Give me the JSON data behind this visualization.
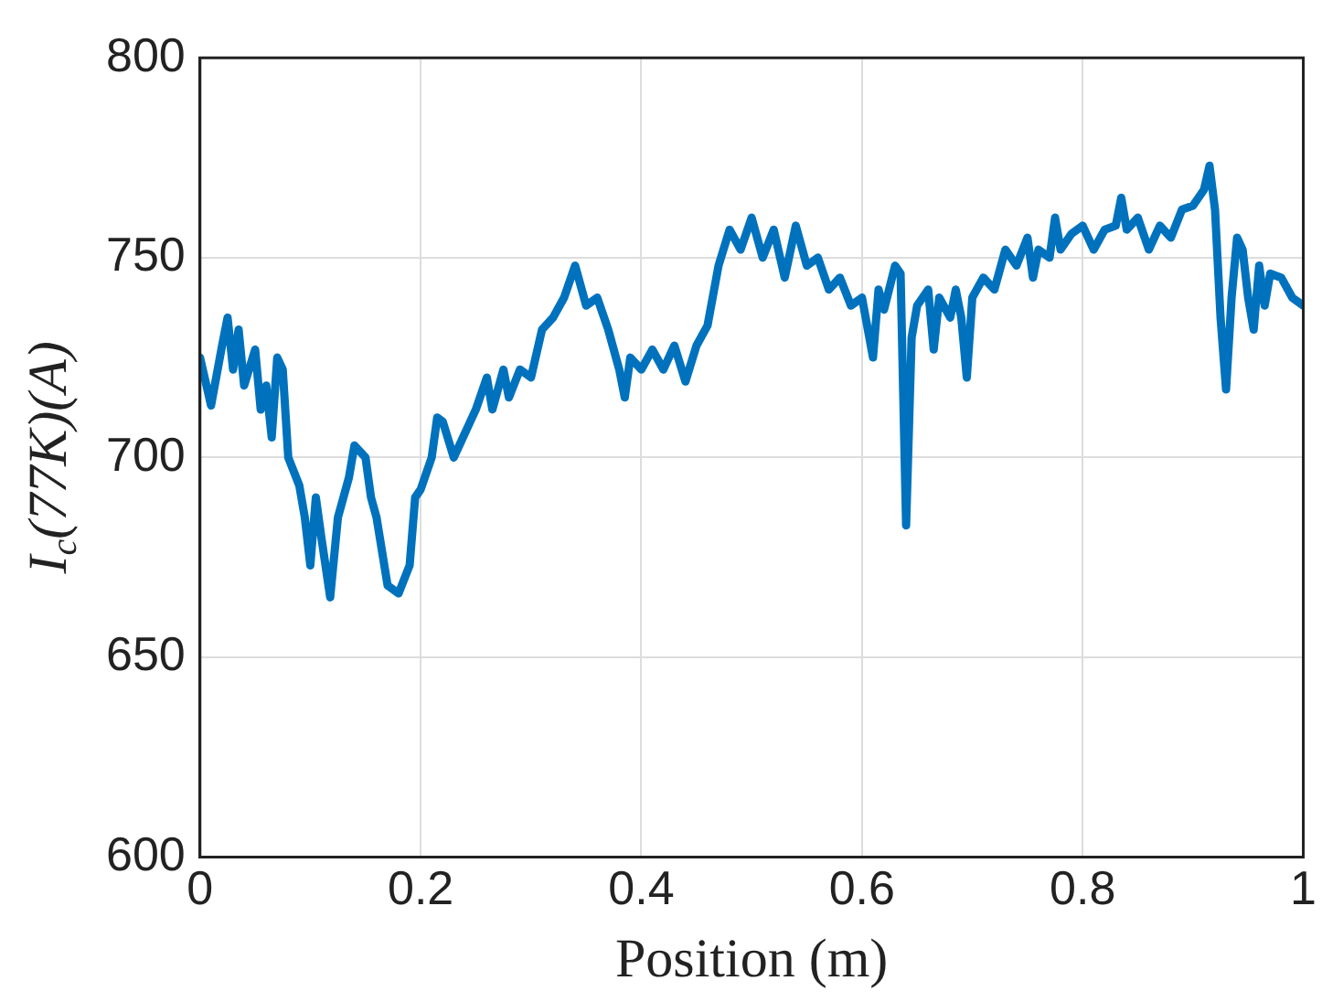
{
  "chart_data": {
    "type": "line",
    "xlabel": "Position (m)",
    "ylabel": "I$_{c}$(77K)(A)",
    "x": [
      0,
      0.01,
      0.02,
      0.025,
      0.03,
      0.035,
      0.04,
      0.05,
      0.055,
      0.06,
      0.065,
      0.07,
      0.075,
      0.08,
      0.09,
      0.095,
      0.1,
      0.105,
      0.11,
      0.118,
      0.125,
      0.135,
      0.14,
      0.15,
      0.155,
      0.16,
      0.17,
      0.18,
      0.19,
      0.195,
      0.2,
      0.21,
      0.215,
      0.22,
      0.23,
      0.24,
      0.25,
      0.26,
      0.265,
      0.275,
      0.28,
      0.29,
      0.3,
      0.31,
      0.32,
      0.33,
      0.34,
      0.35,
      0.36,
      0.37,
      0.38,
      0.385,
      0.39,
      0.4,
      0.41,
      0.42,
      0.43,
      0.44,
      0.45,
      0.46,
      0.47,
      0.48,
      0.49,
      0.5,
      0.51,
      0.52,
      0.53,
      0.54,
      0.55,
      0.56,
      0.57,
      0.58,
      0.59,
      0.6,
      0.61,
      0.615,
      0.62,
      0.63,
      0.635,
      0.64,
      0.645,
      0.65,
      0.66,
      0.665,
      0.67,
      0.68,
      0.685,
      0.69,
      0.695,
      0.7,
      0.71,
      0.72,
      0.73,
      0.74,
      0.75,
      0.755,
      0.76,
      0.77,
      0.775,
      0.78,
      0.79,
      0.8,
      0.81,
      0.82,
      0.83,
      0.835,
      0.84,
      0.85,
      0.86,
      0.87,
      0.88,
      0.89,
      0.9,
      0.91,
      0.915,
      0.92,
      0.925,
      0.93,
      0.935,
      0.94,
      0.945,
      0.95,
      0.955,
      0.96,
      0.965,
      0.97,
      0.98,
      0.99,
      1.0
    ],
    "series": [
      {
        "color": "#0072bd",
        "values": [
          725,
          713,
          728,
          735,
          722,
          732,
          718,
          727,
          712,
          718,
          705,
          725,
          722,
          700,
          693,
          685,
          673,
          690,
          680,
          665,
          685,
          695,
          703,
          700,
          690,
          685,
          668,
          666,
          673,
          690,
          692,
          700,
          710,
          709,
          700,
          706,
          712,
          720,
          712,
          722,
          715,
          722,
          720,
          732,
          735,
          740,
          748,
          738,
          740,
          732,
          722,
          715,
          725,
          722,
          727,
          722,
          728,
          719,
          728,
          733,
          748,
          757,
          752,
          760,
          750,
          757,
          745,
          758,
          748,
          750,
          742,
          745,
          738,
          740,
          725,
          742,
          737,
          748,
          746,
          683,
          730,
          738,
          742,
          727,
          740,
          735,
          742,
          735,
          720,
          740,
          745,
          742,
          752,
          748,
          755,
          745,
          752,
          750,
          760,
          752,
          756,
          758,
          752,
          757,
          758,
          765,
          757,
          760,
          752,
          758,
          755,
          762,
          763,
          767,
          773,
          762,
          735,
          717,
          740,
          755,
          752,
          740,
          732,
          748,
          738,
          746,
          745,
          740,
          738
        ]
      }
    ],
    "xlim": [
      0,
      1
    ],
    "ylim": [
      600,
      800
    ],
    "xticks": [
      0,
      0.2,
      0.4,
      0.6,
      0.8,
      1
    ],
    "yticks": [
      600,
      650,
      700,
      750,
      800
    ],
    "grid": true,
    "legend": false,
    "marker": "none",
    "line_style": "solid"
  }
}
